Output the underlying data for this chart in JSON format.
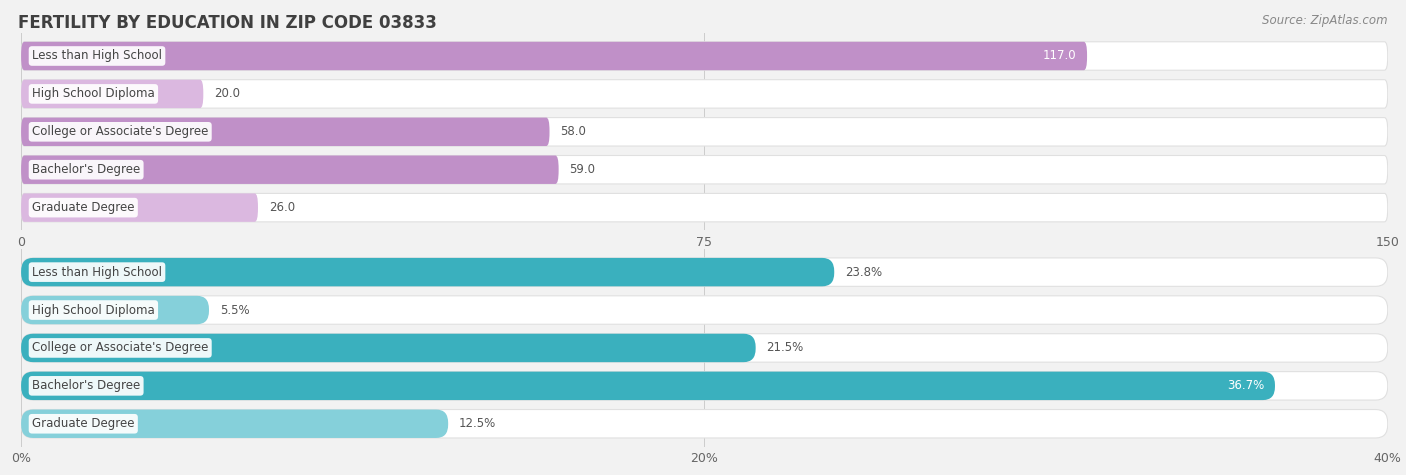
{
  "title": "FERTILITY BY EDUCATION IN ZIP CODE 03833",
  "source": "Source: ZipAtlas.com",
  "top_chart": {
    "categories": [
      "Less than High School",
      "High School Diploma",
      "College or Associate's Degree",
      "Bachelor's Degree",
      "Graduate Degree"
    ],
    "values": [
      117.0,
      20.0,
      58.0,
      59.0,
      26.0
    ],
    "xlim": [
      0,
      150.0
    ],
    "xticks": [
      0.0,
      75.0,
      150.0
    ],
    "bar_color_high": "#c090c8",
    "bar_color_low": "#dbb8e0",
    "threshold": 58.0
  },
  "bottom_chart": {
    "categories": [
      "Less than High School",
      "High School Diploma",
      "College or Associate's Degree",
      "Bachelor's Degree",
      "Graduate Degree"
    ],
    "values": [
      23.8,
      5.5,
      21.5,
      36.7,
      12.5
    ],
    "xlim": [
      0,
      40.0
    ],
    "xticks": [
      0.0,
      20.0,
      40.0
    ],
    "bar_color_high": "#3ab0be",
    "bar_color_low": "#85d0da",
    "threshold": 21.5
  },
  "bg_color": "#f2f2f2",
  "bar_bg_color": "#ffffff",
  "label_font_size": 8.5,
  "value_font_size": 8.5,
  "title_font_size": 12,
  "source_font_size": 8.5
}
